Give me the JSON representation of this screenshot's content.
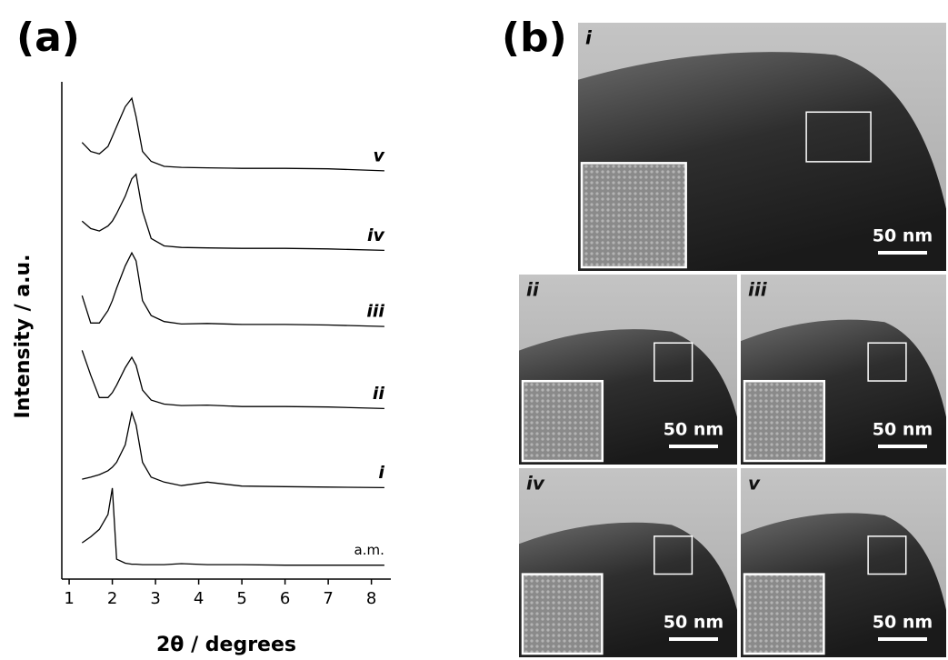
{
  "chart_data": {
    "type": "line",
    "panel_label": "(a)",
    "xlabel": "2θ / degrees",
    "ylabel": "Intensity / a.u.",
    "x": [
      1.3,
      1.5,
      1.7,
      1.9,
      2.0,
      2.1,
      2.3,
      2.45,
      2.55,
      2.7,
      2.9,
      3.2,
      3.6,
      4.2,
      5,
      6,
      7,
      8.3
    ],
    "series": [
      {
        "name": "a.m.",
        "color": "#000000",
        "values": [
          7.3,
          8.5,
          10,
          13,
          18.3,
          4,
          3.2,
          3,
          3,
          2.9,
          2.9,
          2.9,
          3.1,
          2.9,
          2.9,
          2.8,
          2.8,
          2.8
        ]
      },
      {
        "name": "i",
        "color": "#000000",
        "values": [
          20.1,
          20.5,
          21,
          21.8,
          22.5,
          23.5,
          27,
          33.5,
          31,
          23.5,
          20.5,
          19.5,
          18.8,
          19.5,
          18.7,
          18.6,
          18.5,
          18.4
        ]
      },
      {
        "name": "ii",
        "color": "#000000",
        "values": [
          46,
          41,
          36.5,
          36.5,
          37.5,
          39,
          42.5,
          44.6,
          43,
          38,
          36,
          35.2,
          34.9,
          35,
          34.7,
          34.7,
          34.6,
          34.3
        ]
      },
      {
        "name": "iii",
        "color": "#000000",
        "values": [
          57,
          51.5,
          51.5,
          54,
          56,
          58.5,
          63,
          65.6,
          64,
          56,
          53,
          51.8,
          51.3,
          51.4,
          51.2,
          51.2,
          51.1,
          50.8
        ]
      },
      {
        "name": "iv",
        "color": "#000000",
        "values": [
          72,
          70.5,
          70,
          71,
          72,
          73.5,
          77,
          80.5,
          81.4,
          74,
          68.5,
          67,
          66.7,
          66.6,
          66.5,
          66.5,
          66.4,
          66.1
        ]
      },
      {
        "name": "v",
        "color": "#000000",
        "values": [
          87.8,
          86,
          85.5,
          87,
          89,
          91,
          95,
          96.7,
          93,
          86,
          84,
          83,
          82.8,
          82.7,
          82.6,
          82.6,
          82.5,
          82.1
        ]
      }
    ],
    "xlim": [
      0.83,
      8.45
    ],
    "xticks": [
      1,
      2,
      3,
      4,
      5,
      6,
      7,
      8
    ],
    "ylim": [
      0,
      100
    ]
  },
  "images": {
    "panel_label": "(b)",
    "panels": [
      {
        "label": "i",
        "scale_bar": "50 nm"
      },
      {
        "label": "ii",
        "scale_bar": "50 nm"
      },
      {
        "label": "iii",
        "scale_bar": "50 nm"
      },
      {
        "label": "iv",
        "scale_bar": "50 nm"
      },
      {
        "label": "v",
        "scale_bar": "50 nm"
      }
    ]
  }
}
